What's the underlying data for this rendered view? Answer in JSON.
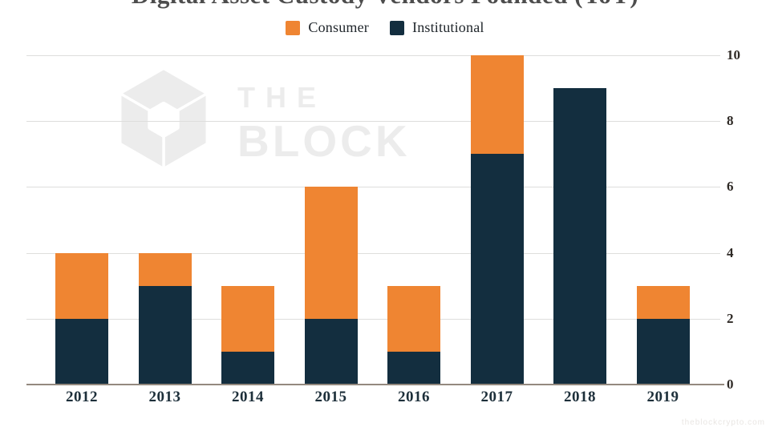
{
  "title": "Digital Asset Custody Vendors Founded (YoY)",
  "watermark": {
    "line1": "THE",
    "line2": "BLOCK"
  },
  "footer_note": "theblockcrypto.com",
  "chart_data": {
    "type": "bar",
    "stacked": true,
    "title": "Digital Asset Custody Vendors Founded (YoY)",
    "categories": [
      "2012",
      "2013",
      "2014",
      "2015",
      "2016",
      "2017",
      "2018",
      "2019"
    ],
    "series": [
      {
        "name": "Consumer",
        "color": "#ef8532",
        "values": [
          2,
          1,
          2,
          4,
          2,
          3,
          0,
          1
        ]
      },
      {
        "name": "Institutional",
        "color": "#132e3f",
        "values": [
          2,
          3,
          1,
          2,
          1,
          7,
          9,
          2
        ]
      }
    ],
    "stack_order": [
      1,
      0
    ],
    "totals": [
      4,
      4,
      3,
      6,
      3,
      10,
      9,
      3
    ],
    "ylim": [
      0,
      10
    ],
    "yticks": [
      0,
      2,
      4,
      6,
      8,
      10
    ],
    "ylabel": "",
    "xlabel": "",
    "grid": true,
    "legend_position": "top",
    "colors": {
      "gridline": "#dededc",
      "axis": "#94897f",
      "ytick_label": "#2f2a26",
      "xtick_label": "#1d2f3a",
      "watermark": "#ececec"
    }
  }
}
